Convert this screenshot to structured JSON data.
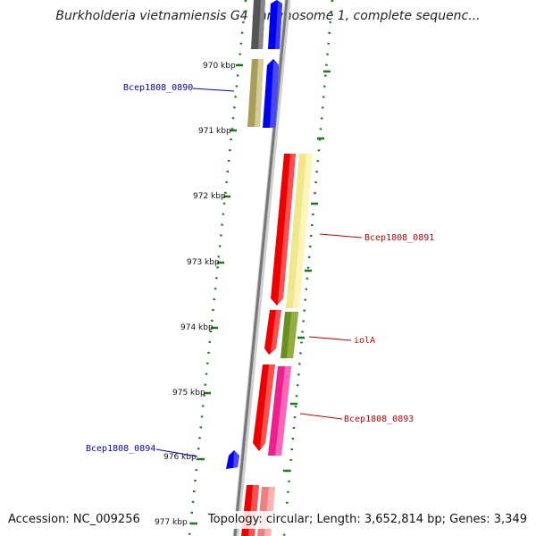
{
  "title": "Burkholderia vietnamiensis G4 chromosome 1, complete sequenc...",
  "footer": {
    "accession": "Accession: NC_009256",
    "summary": "Topology: circular; Length: 3,652,814 bp; Genes: 3,349"
  },
  "ticks": [
    "970 kbp",
    "971 kbp",
    "972 kbp",
    "973 kbp",
    "974 kbp",
    "975 kbp",
    "976 kbp",
    "977 kbp"
  ],
  "gene_labels": {
    "g0890": "Bcep1808_0890",
    "g0891": "Bcep1808_0891",
    "iolA": "iolA",
    "g0893": "Bcep1808_0893",
    "g0894": "Bcep1808_0894"
  },
  "colors": {
    "blue": "#0000ee",
    "red": "#ee0000",
    "olive": "#b8b070",
    "yellow": "#f0e68c",
    "green": "#6b8e23",
    "pink": "#ee1f8f",
    "lightred": "#f08080",
    "grey": "#555555",
    "tick": "#1a7a1a"
  }
}
